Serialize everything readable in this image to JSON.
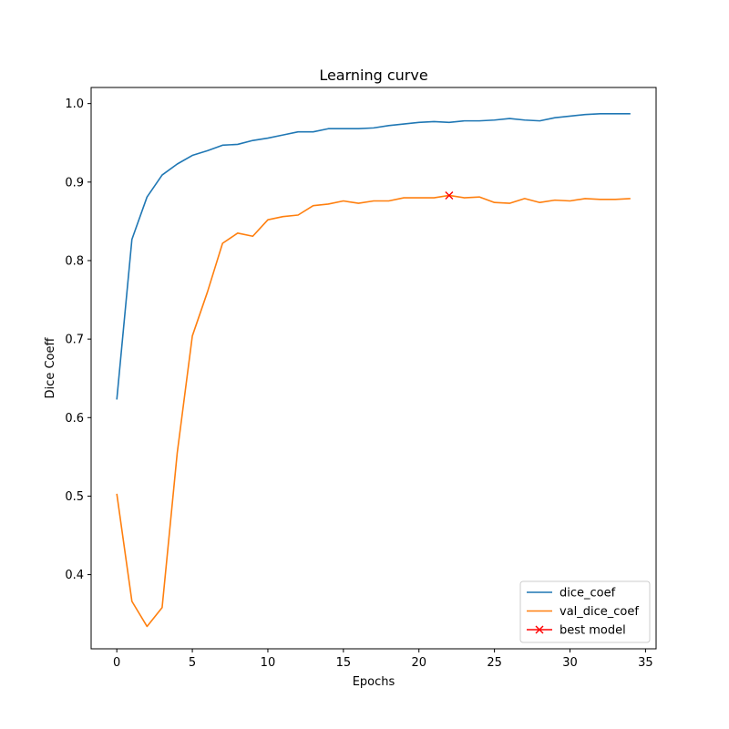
{
  "chart_data": {
    "type": "line",
    "title": "Learning curve",
    "xlabel": "Epochs",
    "ylabel": "Dice Coeff",
    "xlim": [
      -1.7,
      35.7
    ],
    "ylim": [
      0.3055,
      1.0205
    ],
    "xticks": [
      0,
      5,
      10,
      15,
      20,
      25,
      30,
      35
    ],
    "yticks": [
      0.4,
      0.5,
      0.6,
      0.7,
      0.8,
      0.9,
      1.0
    ],
    "ytick_labels": [
      "0.4",
      "0.5",
      "0.6",
      "0.7",
      "0.8",
      "0.9",
      "1.0"
    ],
    "grid": false,
    "legend_position": "lower-right",
    "x": [
      0,
      1,
      2,
      3,
      4,
      5,
      6,
      7,
      8,
      9,
      10,
      11,
      12,
      13,
      14,
      15,
      16,
      17,
      18,
      19,
      20,
      21,
      22,
      23,
      24,
      25,
      26,
      27,
      28,
      29,
      30,
      31,
      32,
      33,
      34
    ],
    "series": [
      {
        "name": "dice_coef",
        "color": "#1f77b4",
        "values": [
          0.623,
          0.827,
          0.881,
          0.909,
          0.923,
          0.934,
          0.94,
          0.947,
          0.948,
          0.953,
          0.956,
          0.96,
          0.964,
          0.964,
          0.968,
          0.968,
          0.968,
          0.969,
          0.972,
          0.974,
          0.976,
          0.977,
          0.976,
          0.978,
          0.978,
          0.979,
          0.981,
          0.979,
          0.978,
          0.982,
          0.984,
          0.986,
          0.987,
          0.987,
          0.987
        ]
      },
      {
        "name": "val_dice_coef",
        "color": "#ff7f0e",
        "values": [
          0.503,
          0.366,
          0.334,
          0.358,
          0.555,
          0.704,
          0.76,
          0.822,
          0.835,
          0.831,
          0.852,
          0.856,
          0.858,
          0.87,
          0.872,
          0.876,
          0.873,
          0.876,
          0.876,
          0.88,
          0.88,
          0.88,
          0.883,
          0.88,
          0.881,
          0.874,
          0.873,
          0.879,
          0.874,
          0.877,
          0.876,
          0.879,
          0.878,
          0.878,
          0.879
        ]
      }
    ],
    "best_model": {
      "name": "best model",
      "color": "#ff0000",
      "marker": "x",
      "x": 22,
      "y": 0.883
    }
  }
}
